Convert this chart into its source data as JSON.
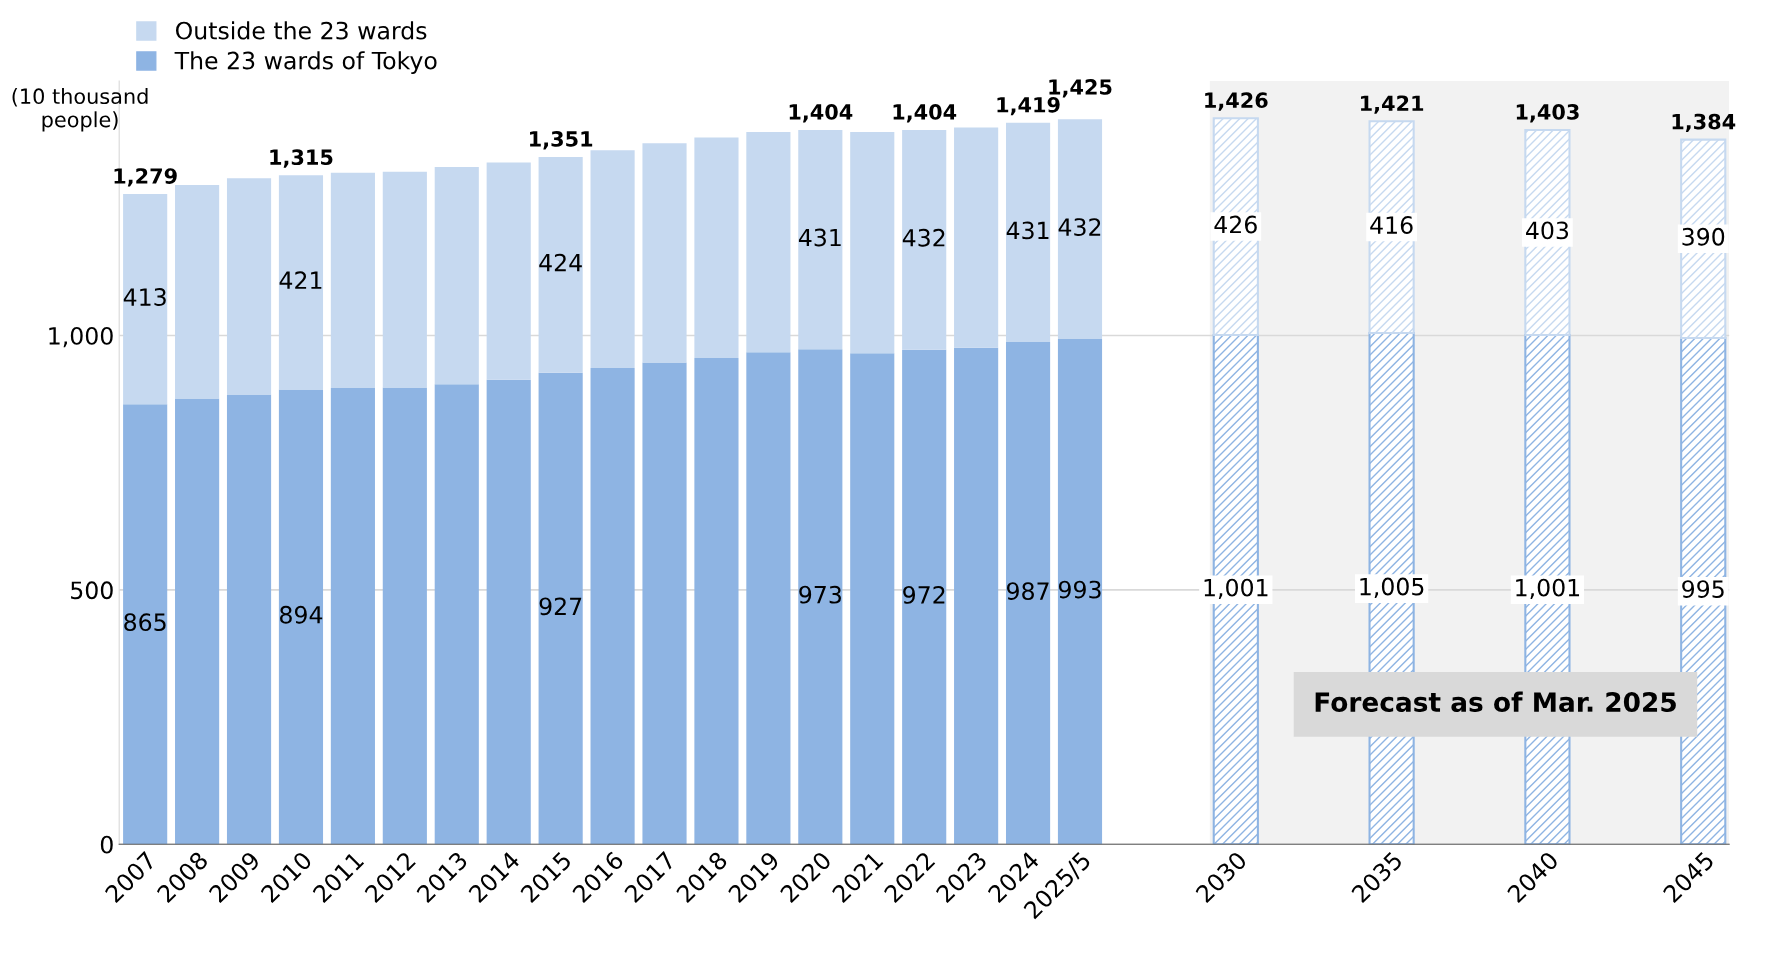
{
  "chart_data": {
    "type": "bar",
    "stacked": true,
    "ylabel": "(10 thousand\npeople)",
    "categories": [
      "2007",
      "2008",
      "2009",
      "2010",
      "2011",
      "2012",
      "2013",
      "2014",
      "2015",
      "2016",
      "2017",
      "2018",
      "2019",
      "2020",
      "2021",
      "2022",
      "2023",
      "2024",
      "2025/5",
      null,
      null,
      "2030",
      null,
      null,
      "2035",
      null,
      null,
      "2040",
      null,
      null,
      "2045"
    ],
    "series": [
      {
        "name": "The 23 wards of Tokyo",
        "color": "#8eb4e3",
        "values": [
          865,
          876,
          884,
          894,
          897,
          898,
          904,
          913,
          927,
          936,
          947,
          956,
          967,
          973,
          965,
          972,
          976,
          987,
          993,
          null,
          null,
          1001,
          null,
          null,
          1005,
          null,
          null,
          1001,
          null,
          null,
          995
        ],
        "value_labels": [
          "865",
          null,
          null,
          "894",
          null,
          null,
          null,
          null,
          "927",
          null,
          null,
          null,
          null,
          "973",
          null,
          "972",
          null,
          "987",
          "993",
          null,
          null,
          "1,001",
          null,
          null,
          "1,005",
          null,
          null,
          "1,001",
          null,
          null,
          "995"
        ]
      },
      {
        "name": "Outside the 23 wards",
        "color": "#c6d9f0",
        "values": [
          413,
          420,
          425,
          421,
          423,
          424,
          427,
          427,
          424,
          428,
          431,
          433,
          433,
          431,
          435,
          432,
          433,
          431,
          432,
          null,
          null,
          426,
          null,
          null,
          416,
          null,
          null,
          403,
          null,
          null,
          390
        ],
        "value_labels": [
          "413",
          null,
          null,
          "421",
          null,
          null,
          null,
          null,
          "424",
          null,
          null,
          null,
          null,
          "431",
          null,
          "432",
          null,
          "431",
          "432",
          null,
          null,
          "426",
          null,
          null,
          "416",
          null,
          null,
          "403",
          null,
          null,
          "390"
        ]
      }
    ],
    "totals": [
      "1,279",
      null,
      null,
      "1,315",
      null,
      null,
      null,
      null,
      "1,351",
      null,
      null,
      null,
      null,
      "1,404",
      null,
      "1,404",
      null,
      "1,419",
      "1,425",
      null,
      null,
      "1,426",
      null,
      null,
      "1,421",
      null,
      null,
      "1,403",
      null,
      null,
      "1,384"
    ],
    "bands": [
      {
        "axis": "x",
        "from": "2030",
        "to": "2045",
        "label": "Forecast as of Mar. 2025",
        "color": "#f2f2f2"
      }
    ],
    "ylim": [
      0,
      1500
    ],
    "yticks": [
      0,
      500,
      {
        "value": 1000,
        "label": "1,000"
      }
    ],
    "grid": "y",
    "legend": "top left"
  }
}
